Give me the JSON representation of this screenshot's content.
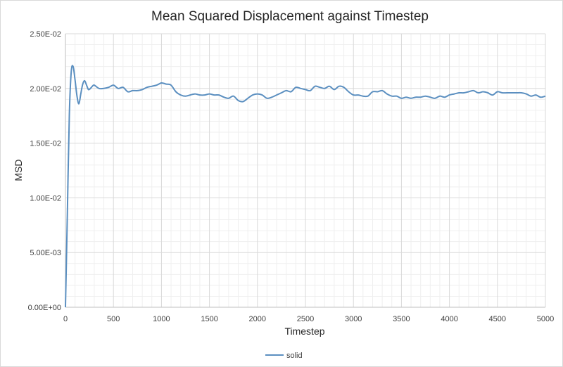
{
  "chart_data": {
    "type": "line",
    "title": "Mean Squared Displacement against Timestep",
    "xlabel": "Timestep",
    "ylabel": "MSD",
    "xlim": [
      0,
      5000
    ],
    "ylim": [
      0,
      0.025
    ],
    "x_ticks": [
      0,
      500,
      1000,
      1500,
      2000,
      2500,
      3000,
      3500,
      4000,
      4500,
      5000
    ],
    "x_tick_labels": [
      "0",
      "500",
      "1000",
      "1500",
      "2000",
      "2500",
      "3000",
      "3500",
      "4000",
      "4500",
      "5000"
    ],
    "y_ticks": [
      0,
      0.005,
      0.01,
      0.015,
      0.02,
      0.025
    ],
    "y_tick_labels": [
      "0.00E+00",
      "5.00E-03",
      "1.00E-02",
      "1.50E-02",
      "2.00E-02",
      "2.50E-02"
    ],
    "minor_grid": true,
    "legend_position": "bottom-center",
    "series": [
      {
        "name": "solid",
        "color": "#5b8fc0",
        "x": [
          0,
          20,
          40,
          60,
          80,
          100,
          120,
          140,
          160,
          180,
          200,
          220,
          240,
          260,
          280,
          300,
          350,
          400,
          450,
          500,
          550,
          600,
          650,
          700,
          750,
          800,
          850,
          900,
          950,
          1000,
          1050,
          1100,
          1150,
          1200,
          1250,
          1300,
          1350,
          1400,
          1450,
          1500,
          1550,
          1600,
          1650,
          1700,
          1750,
          1800,
          1850,
          1900,
          1950,
          2000,
          2050,
          2100,
          2150,
          2200,
          2250,
          2300,
          2350,
          2400,
          2450,
          2500,
          2550,
          2600,
          2650,
          2700,
          2750,
          2800,
          2850,
          2900,
          2950,
          3000,
          3050,
          3100,
          3150,
          3200,
          3250,
          3300,
          3350,
          3400,
          3450,
          3500,
          3550,
          3600,
          3650,
          3700,
          3750,
          3800,
          3850,
          3900,
          3950,
          4000,
          4050,
          4100,
          4150,
          4200,
          4250,
          4300,
          4350,
          4400,
          4450,
          4500,
          4550,
          4600,
          4650,
          4700,
          4750,
          4800,
          4850,
          4900,
          4950,
          5000
        ],
        "values": [
          0.0,
          0.0085,
          0.0175,
          0.0215,
          0.022,
          0.0208,
          0.0193,
          0.0186,
          0.0195,
          0.0204,
          0.0207,
          0.0203,
          0.0199,
          0.02,
          0.0202,
          0.0203,
          0.02,
          0.02,
          0.0201,
          0.0203,
          0.02,
          0.0201,
          0.0197,
          0.0198,
          0.0198,
          0.0199,
          0.0201,
          0.0202,
          0.0203,
          0.0205,
          0.0204,
          0.0203,
          0.0197,
          0.0194,
          0.0193,
          0.0194,
          0.0195,
          0.0194,
          0.0194,
          0.0195,
          0.0194,
          0.0194,
          0.0192,
          0.0191,
          0.0193,
          0.0189,
          0.0188,
          0.0191,
          0.0194,
          0.0195,
          0.0194,
          0.0191,
          0.0192,
          0.0194,
          0.0196,
          0.0198,
          0.0197,
          0.0201,
          0.02,
          0.0199,
          0.0198,
          0.0202,
          0.0201,
          0.02,
          0.0202,
          0.0199,
          0.0202,
          0.0201,
          0.0197,
          0.0194,
          0.0194,
          0.0193,
          0.0193,
          0.0197,
          0.0197,
          0.0198,
          0.0195,
          0.0193,
          0.0193,
          0.0191,
          0.0192,
          0.0191,
          0.0192,
          0.0192,
          0.0193,
          0.0192,
          0.0191,
          0.0193,
          0.0192,
          0.0194,
          0.0195,
          0.0196,
          0.0196,
          0.0197,
          0.0198,
          0.0196,
          0.0197,
          0.0196,
          0.0194,
          0.0197,
          0.0196,
          0.0196,
          0.0196,
          0.0196,
          0.0196,
          0.0195,
          0.0193,
          0.0194,
          0.0192,
          0.0193
        ]
      }
    ]
  }
}
